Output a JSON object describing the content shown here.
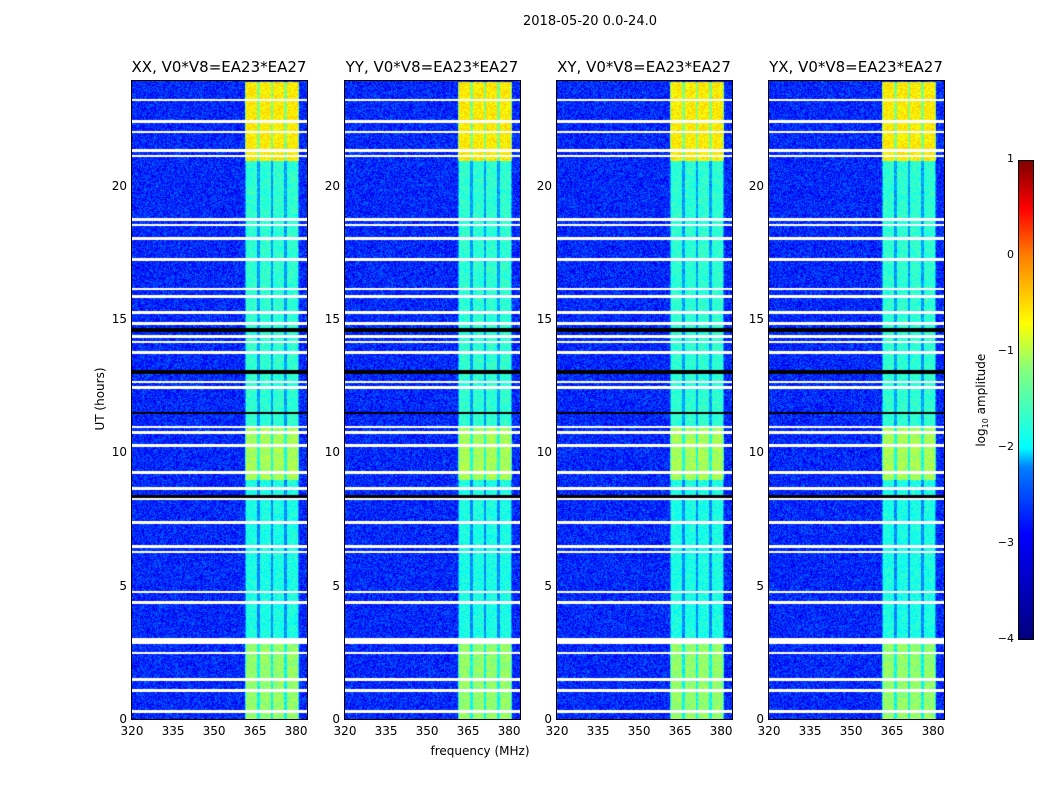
{
  "chart_data": {
    "type": "heatmap",
    "title": "2018-05-20 0.0-24.0",
    "xlabel": "frequency (MHz)",
    "ylabel": "UT (hours)",
    "xlim": [
      320,
      384
    ],
    "ylim": [
      0,
      24
    ],
    "xticks": [
      "320",
      "335",
      "350",
      "365",
      "380"
    ],
    "yticks": [
      "0",
      "5",
      "10",
      "15",
      "20"
    ],
    "panels": [
      {
        "title": "XX, V0*V8=EA23*EA27"
      },
      {
        "title": "YY, V0*V8=EA23*EA27"
      },
      {
        "title": "XY, V0*V8=EA23*EA27"
      },
      {
        "title": "YX, V0*V8=EA23*EA27"
      }
    ],
    "colorbar": {
      "label_prefix": "log",
      "label_sub": "10",
      "label_suffix": " amplitude",
      "range": [
        -4,
        1
      ],
      "ticks": [
        "1",
        "0",
        "−1",
        "−2",
        "−3",
        "−4"
      ],
      "colormap": "jet"
    },
    "background_level": -3.2,
    "signal_band_mhz": [
      361,
      381
    ],
    "signal_subband_edges_mhz": [
      361,
      366,
      371,
      376,
      381
    ],
    "signal_level_by_time": [
      {
        "from": 0,
        "to": 3,
        "level": -1.4
      },
      {
        "from": 3,
        "to": 9,
        "level": -2.0
      },
      {
        "from": 9,
        "to": 11,
        "level": -1.3
      },
      {
        "from": 11,
        "to": 21,
        "level": -1.9
      },
      {
        "from": 21,
        "to": 24,
        "level": -0.8
      }
    ],
    "flagged_hours": [
      0.3,
      1.1,
      1.5,
      2.5,
      2.9,
      3.0,
      4.4,
      4.8,
      6.3,
      6.5,
      7.4,
      8.3,
      8.7,
      9.3,
      10.3,
      10.8,
      11.0,
      12.5,
      12.7,
      13.8,
      14.2,
      14.4,
      14.9,
      15.3,
      15.9,
      16.2,
      17.3,
      18.1,
      18.6,
      18.8,
      21.2,
      21.4,
      22.1,
      22.5,
      23.3
    ]
  }
}
